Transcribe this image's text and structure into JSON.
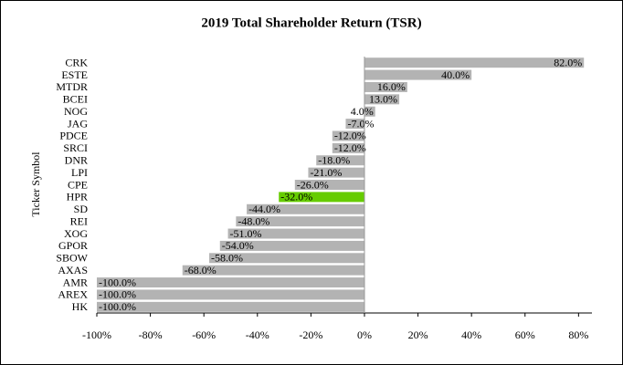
{
  "chart_data": {
    "type": "bar",
    "orientation": "horizontal",
    "title": "2019 Total Shareholder Return (TSR)",
    "y_label": "Ticker Symbol",
    "categories": [
      "CRK",
      "ESTE",
      "MTDR",
      "BCEI",
      "NOG",
      "JAG",
      "PDCE",
      "SRCI",
      "DNR",
      "LPI",
      "CPE",
      "HPR",
      "SD",
      "REI",
      "XOG",
      "GPOR",
      "SBOW",
      "AXAS",
      "AMR",
      "AREX",
      "HK"
    ],
    "values": [
      82,
      40,
      16,
      13,
      4,
      -7,
      -12,
      -12,
      -18,
      -21,
      -26,
      -32,
      -44,
      -48,
      -51,
      -54,
      -58,
      -68,
      -100,
      -100,
      -100
    ],
    "value_labels": [
      "82.0%",
      "40.0%",
      "16.0%",
      "13.0%",
      "4.0%",
      "-7.0%",
      "-12.0%",
      "-12.0%",
      "-18.0%",
      "-21.0%",
      "-26.0%",
      "-32.0%",
      "-44.0%",
      "-48.0%",
      "-51.0%",
      "-54.0%",
      "-58.0%",
      "-68.0%",
      "-100.0%",
      "-100.0%",
      "-100.0%"
    ],
    "colors": [
      "#b3b3b3",
      "#b3b3b3",
      "#b3b3b3",
      "#b3b3b3",
      "#b3b3b3",
      "#b3b3b3",
      "#b3b3b3",
      "#b3b3b3",
      "#b3b3b3",
      "#b3b3b3",
      "#b3b3b3",
      "#66cc00",
      "#b3b3b3",
      "#b3b3b3",
      "#b3b3b3",
      "#b3b3b3",
      "#b3b3b3",
      "#b3b3b3",
      "#b3b3b3",
      "#b3b3b3",
      "#b3b3b3"
    ],
    "xlim": [
      -100,
      85
    ],
    "xticks": [
      {
        "value": -100,
        "label": "-100%"
      },
      {
        "value": -80,
        "label": "-80%"
      },
      {
        "value": -60,
        "label": "-60%"
      },
      {
        "value": -40,
        "label": "-40%"
      },
      {
        "value": -20,
        "label": "-20%"
      },
      {
        "value": 0,
        "label": "0%"
      },
      {
        "value": 20,
        "label": "20%"
      },
      {
        "value": 40,
        "label": "40%"
      },
      {
        "value": 60,
        "label": "60%"
      },
      {
        "value": 80,
        "label": "80%"
      }
    ]
  }
}
